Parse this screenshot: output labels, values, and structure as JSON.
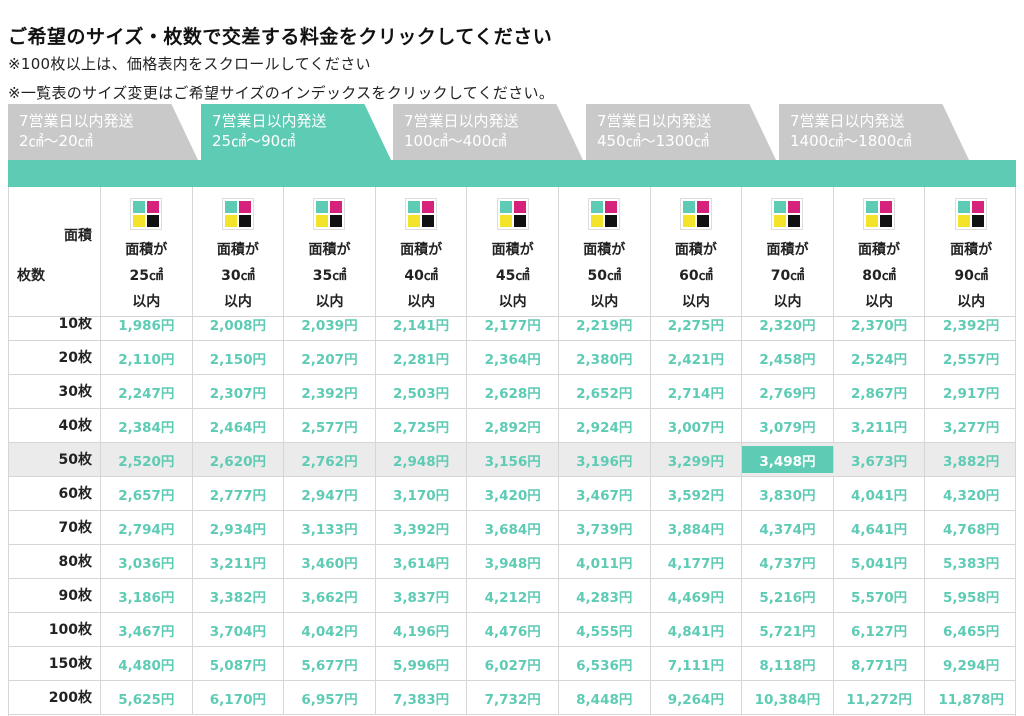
{
  "title": "ご希望のサイズ・枚数で交差する料金をクリックしてください",
  "notes": [
    "※100枚以上は、価格表内をスクロールしてください",
    "※一覧表のサイズ変更はご希望サイズのインデックスをクリックしてください。"
  ],
  "tabs": [
    {
      "line1": "7営業日以内発送",
      "line2": "2㎠〜20㎠",
      "active": false
    },
    {
      "line1": "7営業日以内発送",
      "line2": "25㎠〜90㎠",
      "active": true
    },
    {
      "line1": "7営業日以内発送",
      "line2": "100㎠〜400㎠",
      "active": false
    },
    {
      "line1": "7営業日以内発送",
      "line2": "450㎠〜1300㎠",
      "active": false
    },
    {
      "line1": "7営業日以内発送",
      "line2": "1400㎠〜1800㎠",
      "active": false
    }
  ],
  "corner": {
    "area_label": "面積",
    "qty_label": "枚数"
  },
  "colors": {
    "accent": "#5ecbb5",
    "inactive_tab": "#c9c9c9",
    "logo": [
      "#5ecbb5",
      "#d6227a",
      "#f3e32a",
      "#111111"
    ]
  },
  "columns": [
    {
      "l1": "面積が",
      "l2": "25㎠",
      "l3": "以内"
    },
    {
      "l1": "面積が",
      "l2": "30㎠",
      "l3": "以内"
    },
    {
      "l1": "面積が",
      "l2": "35㎠",
      "l3": "以内"
    },
    {
      "l1": "面積が",
      "l2": "40㎠",
      "l3": "以内"
    },
    {
      "l1": "面積が",
      "l2": "45㎠",
      "l3": "以内"
    },
    {
      "l1": "面積が",
      "l2": "50㎠",
      "l3": "以内"
    },
    {
      "l1": "面積が",
      "l2": "60㎠",
      "l3": "以内"
    },
    {
      "l1": "面積が",
      "l2": "70㎠",
      "l3": "以内"
    },
    {
      "l1": "面積が",
      "l2": "80㎠",
      "l3": "以内"
    },
    {
      "l1": "面積が",
      "l2": "90㎠",
      "l3": "以内"
    }
  ],
  "rows": [
    {
      "qty": "10枚",
      "prices": [
        "1,986円",
        "2,008円",
        "2,039円",
        "2,141円",
        "2,177円",
        "2,219円",
        "2,275円",
        "2,320円",
        "2,370円",
        "2,392円"
      ]
    },
    {
      "qty": "20枚",
      "prices": [
        "2,110円",
        "2,150円",
        "2,207円",
        "2,281円",
        "2,364円",
        "2,380円",
        "2,421円",
        "2,458円",
        "2,524円",
        "2,557円"
      ]
    },
    {
      "qty": "30枚",
      "prices": [
        "2,247円",
        "2,307円",
        "2,392円",
        "2,503円",
        "2,628円",
        "2,652円",
        "2,714円",
        "2,769円",
        "2,867円",
        "2,917円"
      ]
    },
    {
      "qty": "40枚",
      "prices": [
        "2,384円",
        "2,464円",
        "2,577円",
        "2,725円",
        "2,892円",
        "2,924円",
        "3,007円",
        "3,079円",
        "3,211円",
        "3,277円"
      ]
    },
    {
      "qty": "50枚",
      "prices": [
        "2,520円",
        "2,620円",
        "2,762円",
        "2,948円",
        "3,156円",
        "3,196円",
        "3,299円",
        "3,498円",
        "3,673円",
        "3,882円"
      ],
      "highlight": true,
      "selected_index": 7
    },
    {
      "qty": "60枚",
      "prices": [
        "2,657円",
        "2,777円",
        "2,947円",
        "3,170円",
        "3,420円",
        "3,467円",
        "3,592円",
        "3,830円",
        "4,041円",
        "4,320円"
      ]
    },
    {
      "qty": "70枚",
      "prices": [
        "2,794円",
        "2,934円",
        "3,133円",
        "3,392円",
        "3,684円",
        "3,739円",
        "3,884円",
        "4,374円",
        "4,641円",
        "4,768円"
      ]
    },
    {
      "qty": "80枚",
      "prices": [
        "3,036円",
        "3,211円",
        "3,460円",
        "3,614円",
        "3,948円",
        "4,011円",
        "4,177円",
        "4,737円",
        "5,041円",
        "5,383円"
      ]
    },
    {
      "qty": "90枚",
      "prices": [
        "3,186円",
        "3,382円",
        "3,662円",
        "3,837円",
        "4,212円",
        "4,283円",
        "4,469円",
        "5,216円",
        "5,570円",
        "5,958円"
      ]
    },
    {
      "qty": "100枚",
      "prices": [
        "3,467円",
        "3,704円",
        "4,042円",
        "4,196円",
        "4,476円",
        "4,555円",
        "4,841円",
        "5,721円",
        "6,127円",
        "6,465円"
      ]
    },
    {
      "qty": "150枚",
      "prices": [
        "4,480円",
        "5,087円",
        "5,677円",
        "5,996円",
        "6,027円",
        "6,536円",
        "7,111円",
        "8,118円",
        "8,771円",
        "9,294円"
      ]
    },
    {
      "qty": "200枚",
      "prices": [
        "5,625円",
        "6,170円",
        "6,957円",
        "7,383円",
        "7,732円",
        "8,448円",
        "9,264円",
        "10,384円",
        "11,272円",
        "11,878円"
      ]
    }
  ]
}
